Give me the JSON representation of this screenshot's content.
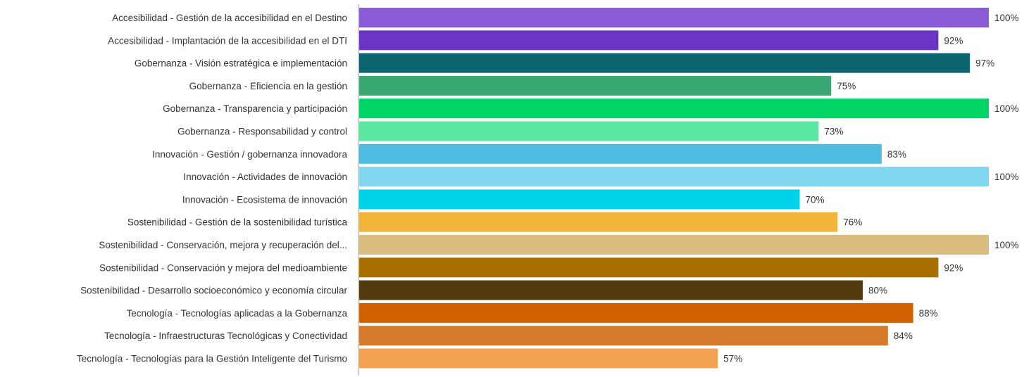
{
  "chart_data": {
    "type": "bar",
    "orientation": "horizontal",
    "categories": [
      "Accesibilidad - Gestión de la accesibilidad en el Destino",
      "Accesibilidad - Implantación de la accesibilidad en el DTI",
      "Gobernanza - Visión estratégica e implementación",
      "Gobernanza - Eficiencia en la gestión",
      "Gobernanza - Transparencia y participación",
      "Gobernanza - Responsabilidad y control",
      "Innovación - Gestión / gobernanza innovadora",
      "Innovación - Actividades de innovación",
      "Innovación - Ecosistema de innovación",
      "Sostenibilidad - Gestión de la sostenibilidad turística",
      "Sostenibilidad - Conservación, mejora y recuperación del...",
      "Sostenibilidad - Conservación y mejora del medioambiente",
      "Sostenibilidad - Desarrollo socioeconómico y economía circular",
      "Tecnología - Tecnologías aplicadas a la Gobernanza",
      "Tecnología - Infraestructuras Tecnológicas y Conectividad",
      "Tecnología - Tecnologías para la Gestión Inteligente del Turismo"
    ],
    "values": [
      100,
      92,
      97,
      75,
      100,
      73,
      83,
      100,
      70,
      76,
      100,
      92,
      80,
      88,
      84,
      57
    ],
    "value_labels": [
      "100%",
      "92%",
      "97%",
      "75%",
      "100%",
      "73%",
      "83%",
      "100%",
      "70%",
      "76%",
      "100%",
      "92%",
      "80%",
      "88%",
      "84%",
      "57%"
    ],
    "colors": [
      "#8a5bd6",
      "#6a35c4",
      "#0b6470",
      "#3aa872",
      "#00d465",
      "#59e8a2",
      "#4cbde0",
      "#82d5ef",
      "#00d2ec",
      "#f0b53a",
      "#d9bb7e",
      "#a87000",
      "#533b0f",
      "#d06000",
      "#d47a2a",
      "#f5a152"
    ],
    "xlim": [
      0,
      100
    ],
    "grid": false,
    "legend": "none"
  }
}
